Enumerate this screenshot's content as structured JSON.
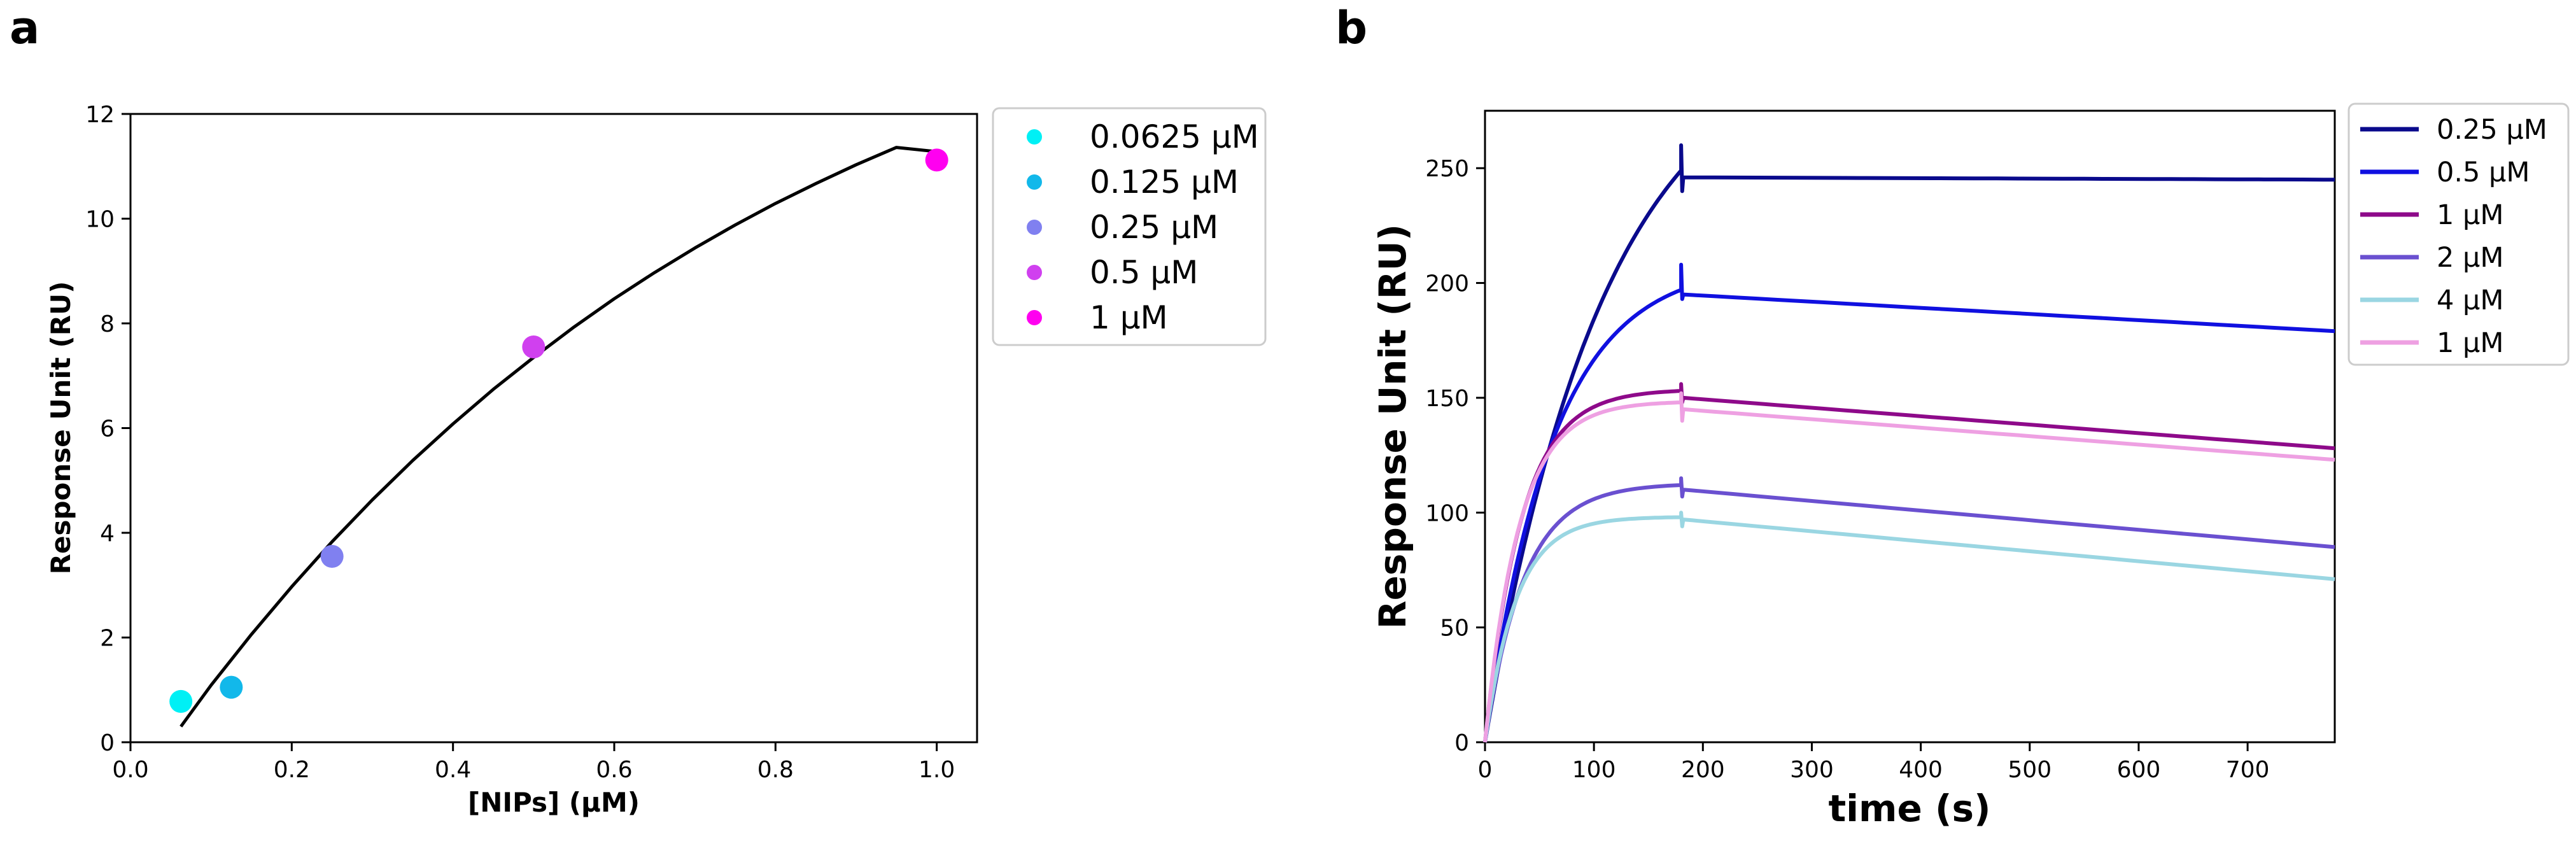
{
  "chart_data": [
    {
      "panel": "a",
      "type": "scatter",
      "title": "",
      "xlabel": "[NIPs] (μM)",
      "ylabel": "Response Unit (RU)",
      "xlim": [
        0.0,
        1.05
      ],
      "ylim": [
        0,
        12
      ],
      "xticks": [
        0.0,
        0.2,
        0.4,
        0.6,
        0.8,
        1.0
      ],
      "xtick_labels": [
        "0.0",
        "0.2",
        "0.4",
        "0.6",
        "0.8",
        "1.0"
      ],
      "yticks": [
        0,
        2,
        4,
        6,
        8,
        10,
        12
      ],
      "ytick_labels": [
        "0",
        "2",
        "4",
        "6",
        "8",
        "10",
        "12"
      ],
      "grid": false,
      "legend_position": "outside-right",
      "points": [
        {
          "name": "0.0625 μM",
          "x": 0.0625,
          "y": 0.78,
          "color": "#00f0f5"
        },
        {
          "name": "0.125 μM",
          "x": 0.125,
          "y": 1.05,
          "color": "#12b8ea"
        },
        {
          "name": "0.25 μM",
          "x": 0.25,
          "y": 3.55,
          "color": "#8080f0"
        },
        {
          "name": "0.5 μM",
          "x": 0.5,
          "y": 7.55,
          "color": "#d040ef"
        },
        {
          "name": "1 μM",
          "x": 1.0,
          "y": 11.12,
          "color": "#ff00f0"
        }
      ],
      "fit_line": {
        "color": "#000000",
        "x": [
          0.0625,
          0.1,
          0.15,
          0.2,
          0.25,
          0.3,
          0.35,
          0.4,
          0.45,
          0.5,
          0.55,
          0.6,
          0.65,
          0.7,
          0.75,
          0.8,
          0.85,
          0.9,
          0.95,
          1.0
        ],
        "y": [
          0.3,
          1.09,
          2.06,
          2.97,
          3.83,
          4.63,
          5.38,
          6.08,
          6.74,
          7.35,
          7.93,
          8.47,
          8.97,
          9.44,
          9.88,
          10.29,
          10.67,
          11.03,
          11.36,
          11.28
        ]
      }
    },
    {
      "panel": "b",
      "type": "line",
      "title": "",
      "xlabel": "time (s)",
      "ylabel": "Response Unit (RU)",
      "xlim": [
        0,
        780
      ],
      "ylim": [
        0,
        275
      ],
      "xticks": [
        0,
        100,
        200,
        300,
        400,
        500,
        600,
        700
      ],
      "xtick_labels": [
        "0",
        "100",
        "200",
        "300",
        "400",
        "500",
        "600",
        "700"
      ],
      "yticks": [
        0,
        50,
        100,
        150,
        200,
        250
      ],
      "ytick_labels": [
        "0",
        "50",
        "100",
        "150",
        "200",
        "250"
      ],
      "grid": false,
      "legend_position": "outside-right",
      "series": [
        {
          "name": "0.25 μM",
          "color": "#0a0a8c",
          "k": 0.009,
          "dur": 180,
          "peak": 249,
          "dip": 246,
          "spikeTop": 260,
          "spikeBot": 240,
          "end": 245,
          "tEnd": 780
        },
        {
          "name": "0.5 μM",
          "color": "#1010e0",
          "k": 0.016,
          "dur": 180,
          "peak": 197,
          "dip": 195,
          "spikeTop": 208,
          "spikeBot": 193,
          "end": 179,
          "tEnd": 780
        },
        {
          "name": "1 μM",
          "color": "#8e0a8a",
          "k": 0.03,
          "dur": 180,
          "peak": 153,
          "dip": 150,
          "spikeTop": 156,
          "spikeBot": 148,
          "end": 128,
          "tEnd": 780
        },
        {
          "name": "2 μM",
          "color": "#6a50d0",
          "k": 0.028,
          "dur": 180,
          "peak": 112,
          "dip": 110,
          "spikeTop": 115,
          "spikeBot": 107,
          "end": 85,
          "tEnd": 780
        },
        {
          "name": "4 μM",
          "color": "#9ad6e2",
          "k": 0.035,
          "dur": 180,
          "peak": 98,
          "dip": 97,
          "spikeTop": 100,
          "spikeBot": 94,
          "end": 71,
          "tEnd": 780
        },
        {
          "name": "1 μM",
          "color": "#eea0e2",
          "k": 0.032,
          "dur": 180,
          "peak": 148,
          "dip": 145,
          "spikeTop": 152,
          "spikeBot": 140,
          "end": 123,
          "tEnd": 780
        }
      ]
    }
  ],
  "panels": {
    "a": "a",
    "b": "b"
  }
}
